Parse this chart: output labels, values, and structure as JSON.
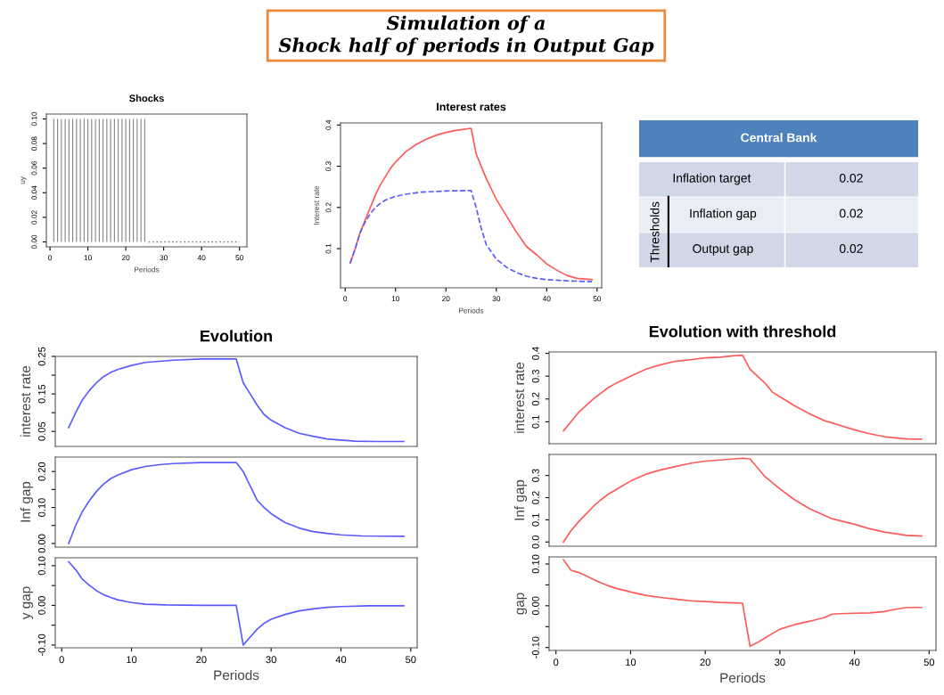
{
  "chart_data": [
    {
      "type": "other",
      "title": "Simulation of a\nShock half of periods in Output Gap"
    },
    {
      "type": "bar",
      "title": "Shocks",
      "xlabel": "Periods",
      "ylabel": "uy",
      "xlim": [
        -0.96,
        51.96
      ],
      "ylim": [
        -0.004,
        0.104
      ],
      "xticks": [
        0,
        10,
        20,
        30,
        40,
        50
      ],
      "yticks": [
        {
          "value": 0,
          "label": "0.00"
        },
        {
          "value": 0.02,
          "label": "0.02"
        },
        {
          "value": 0.04,
          "label": "0.04"
        },
        {
          "value": 0.06,
          "label": "0.06"
        },
        {
          "value": 0.08,
          "label": "0.08"
        },
        {
          "value": 0.1,
          "label": "0.10"
        }
      ],
      "series": [
        {
          "type": "bar",
          "color": "#7f7f7f",
          "x": [
            1,
            2,
            3,
            4,
            5,
            6,
            7,
            8,
            9,
            10,
            11,
            12,
            13,
            14,
            15,
            16,
            17,
            18,
            19,
            20,
            21,
            22,
            23,
            24,
            25
          ],
          "values": [
            0.1,
            0.1,
            0.1,
            0.1,
            0.1,
            0.1,
            0.1,
            0.1,
            0.1,
            0.1,
            0.1,
            0.1,
            0.1,
            0.1,
            0.1,
            0.1,
            0.1,
            0.1,
            0.1,
            0.1,
            0.1,
            0.1,
            0.1,
            0.1,
            0.1
          ]
        },
        {
          "type": "line",
          "line_style": "dotted",
          "color": "#7f7f7f",
          "x": [
            26,
            50
          ],
          "values": [
            0,
            0
          ]
        }
      ]
    },
    {
      "type": "line",
      "title": "Interest rates",
      "xlabel": "Periods",
      "ylabel": "Interest rate",
      "xlim": [
        -0.92,
        50.92
      ],
      "ylim": [
        0.005,
        0.405
      ],
      "xticks": [
        0,
        10,
        20,
        30,
        40,
        50
      ],
      "yticks": [
        0.1,
        0.2,
        0.3,
        0.4
      ],
      "series": [
        {
          "color": "#ff5a5a",
          "line_style": "solid",
          "x": [
            1,
            2,
            3,
            4,
            5,
            6,
            7,
            8,
            9,
            10,
            12,
            14,
            16,
            18,
            20,
            22,
            25,
            26,
            28,
            30,
            32,
            34,
            36,
            38,
            40,
            42,
            44,
            46,
            49
          ],
          "values": [
            0.065,
            0.1,
            0.14,
            0.17,
            0.2,
            0.23,
            0.255,
            0.275,
            0.295,
            0.31,
            0.335,
            0.352,
            0.365,
            0.375,
            0.382,
            0.387,
            0.392,
            0.33,
            0.27,
            0.22,
            0.18,
            0.14,
            0.105,
            0.085,
            0.063,
            0.048,
            0.035,
            0.028,
            0.025
          ]
        },
        {
          "color": "#5a5aff",
          "line_style": "dashed",
          "x": [
            1,
            2,
            3,
            4,
            5,
            6,
            7,
            8,
            10,
            12,
            15,
            20,
            25,
            26,
            27,
            28,
            30,
            32,
            34,
            36,
            38,
            40,
            44,
            49
          ],
          "values": [
            0.065,
            0.1,
            0.14,
            0.165,
            0.185,
            0.2,
            0.21,
            0.218,
            0.227,
            0.232,
            0.237,
            0.24,
            0.241,
            0.2,
            0.15,
            0.11,
            0.075,
            0.055,
            0.042,
            0.033,
            0.028,
            0.025,
            0.022,
            0.02
          ]
        }
      ]
    },
    {
      "type": "other",
      "title": "Central Bank",
      "categories": [
        "Inflation target",
        "Inflation gap",
        "Output gap"
      ],
      "values": [
        0.02,
        0.02,
        0.02
      ],
      "data_labels": true,
      "annotations": [
        "Thresholds"
      ]
    },
    {
      "type": "line",
      "title": "Evolution",
      "ylabel": "interest rate",
      "tick_labels": "y",
      "xlim": [
        -0.92,
        50.92
      ],
      "ylim": [
        0.01,
        0.25
      ],
      "yticks": [
        {
          "value": 0.05,
          "label": "0.05"
        },
        {
          "value": 0.1,
          "label": null
        },
        {
          "value": 0.15,
          "label": "0.15"
        },
        {
          "value": 0.2,
          "label": null
        },
        {
          "value": 0.25,
          "label": "0.25"
        }
      ],
      "series": [
        {
          "color": "#5a5aff",
          "line_style": "solid",
          "x": [
            1,
            2,
            3,
            4,
            5,
            6,
            7,
            8,
            10,
            12,
            14,
            16,
            20,
            25,
            26,
            27,
            28,
            29,
            30,
            32,
            34,
            36,
            38,
            40,
            42,
            45,
            49
          ],
          "values": [
            0.06,
            0.1,
            0.135,
            0.16,
            0.18,
            0.196,
            0.207,
            0.215,
            0.226,
            0.234,
            0.237,
            0.24,
            0.243,
            0.243,
            0.18,
            0.15,
            0.12,
            0.095,
            0.08,
            0.06,
            0.045,
            0.037,
            0.03,
            0.027,
            0.024,
            0.023,
            0.023
          ]
        }
      ]
    },
    {
      "type": "line",
      "ylabel": "Inf gap",
      "tick_labels": "y",
      "xlim": [
        -0.92,
        50.92
      ],
      "ylim": [
        -0.01,
        0.24
      ],
      "yticks": [
        {
          "value": 0,
          "label": "0.00"
        },
        {
          "value": 0.05,
          "label": null
        },
        {
          "value": 0.1,
          "label": "0.10"
        },
        {
          "value": 0.15,
          "label": null
        },
        {
          "value": 0.2,
          "label": "0.20"
        }
      ],
      "series": [
        {
          "color": "#5a5aff",
          "line_style": "solid",
          "x": [
            1,
            2,
            3,
            4,
            5,
            6,
            7,
            8,
            10,
            12,
            14,
            16,
            20,
            25,
            26,
            27,
            28,
            29,
            30,
            32,
            34,
            36,
            38,
            40,
            43,
            49
          ],
          "values": [
            0.0,
            0.05,
            0.09,
            0.12,
            0.145,
            0.165,
            0.18,
            0.19,
            0.205,
            0.214,
            0.219,
            0.222,
            0.225,
            0.225,
            0.2,
            0.16,
            0.12,
            0.1,
            0.083,
            0.058,
            0.043,
            0.033,
            0.028,
            0.024,
            0.021,
            0.02
          ]
        }
      ]
    },
    {
      "type": "line",
      "xlabel": "Periods",
      "ylabel": "y gap",
      "xlim": [
        -0.92,
        50.92
      ],
      "ylim": [
        -0.107,
        0.12
      ],
      "xticks": [
        0,
        10,
        20,
        30,
        40,
        50
      ],
      "yticks": [
        {
          "value": -0.1,
          "label": "-0.10"
        },
        {
          "value": -0.05,
          "label": null
        },
        {
          "value": 0,
          "label": "0.00"
        },
        {
          "value": 0.05,
          "label": null
        },
        {
          "value": 0.1,
          "label": "0.10"
        }
      ],
      "series": [
        {
          "color": "#5a5aff",
          "line_style": "solid",
          "x": [
            1,
            2,
            3,
            4,
            5,
            6,
            7,
            8,
            10,
            12,
            15,
            20,
            25,
            26,
            27,
            28,
            29,
            30,
            32,
            34,
            36,
            38,
            40,
            44,
            49
          ],
          "values": [
            0.11,
            0.09,
            0.065,
            0.05,
            0.037,
            0.027,
            0.02,
            0.014,
            0.007,
            0.003,
            0.001,
            0.0,
            0.0,
            -0.1,
            -0.08,
            -0.06,
            -0.045,
            -0.035,
            -0.023,
            -0.014,
            -0.009,
            -0.005,
            -0.003,
            -0.001,
            -0.001
          ]
        }
      ]
    },
    {
      "type": "line",
      "title": "Evolution with threshold",
      "ylabel": "interest rate",
      "tick_labels": "y",
      "xlim": [
        -0.92,
        50.92
      ],
      "ylim": [
        0.004,
        0.406
      ],
      "yticks": [
        0.1,
        0.2,
        0.3,
        0.4
      ],
      "series": [
        {
          "color": "#ff5a5a",
          "line_style": "solid",
          "x": [
            1,
            2,
            3,
            4,
            5,
            6,
            7,
            8,
            10,
            12,
            14,
            16,
            18,
            20,
            22,
            24,
            25,
            26,
            28,
            29,
            30,
            32,
            34,
            36,
            38,
            40,
            42,
            44,
            46,
            47,
            49
          ],
          "values": [
            0.06,
            0.1,
            0.14,
            0.17,
            0.2,
            0.225,
            0.25,
            0.268,
            0.3,
            0.33,
            0.35,
            0.365,
            0.372,
            0.38,
            0.383,
            0.39,
            0.392,
            0.33,
            0.27,
            0.23,
            0.21,
            0.17,
            0.135,
            0.105,
            0.085,
            0.065,
            0.048,
            0.035,
            0.028,
            0.025,
            0.024
          ]
        }
      ]
    },
    {
      "type": "line",
      "ylabel": "Inf gap",
      "tick_labels": "y",
      "xlim": [
        -0.92,
        50.92
      ],
      "ylim": [
        -0.019,
        0.395
      ],
      "yticks": [
        {
          "value": 0,
          "label": "0.0"
        },
        0.1,
        0.2,
        0.3
      ],
      "series": [
        {
          "color": "#ff5a5a",
          "line_style": "solid",
          "x": [
            1,
            2,
            3,
            4,
            5,
            6,
            7,
            8,
            10,
            12,
            14,
            16,
            18,
            20,
            22,
            25,
            26,
            27,
            28,
            30,
            32,
            34,
            36,
            37,
            40,
            42,
            44,
            46,
            47,
            49
          ],
          "values": [
            0.0,
            0.05,
            0.09,
            0.125,
            0.16,
            0.19,
            0.215,
            0.235,
            0.275,
            0.305,
            0.325,
            0.34,
            0.355,
            0.365,
            0.37,
            0.378,
            0.375,
            0.335,
            0.295,
            0.24,
            0.19,
            0.15,
            0.12,
            0.105,
            0.08,
            0.06,
            0.045,
            0.035,
            0.03,
            0.027
          ]
        }
      ]
    },
    {
      "type": "line",
      "xlabel": "Periods",
      "ylabel": "gap",
      "xlim": [
        -0.92,
        50.92
      ],
      "ylim": [
        -0.107,
        0.117
      ],
      "xticks": [
        0,
        10,
        20,
        30,
        40,
        50
      ],
      "yticks": [
        {
          "value": -0.1,
          "label": "-0.10"
        },
        {
          "value": -0.05,
          "label": null
        },
        {
          "value": 0,
          "label": "0.00"
        },
        {
          "value": 0.05,
          "label": null
        },
        {
          "value": 0.1,
          "label": "0.10"
        }
      ],
      "series": [
        {
          "color": "#ff5a5a",
          "line_style": "solid",
          "x": [
            1,
            2,
            3,
            4,
            5,
            6,
            7,
            8,
            10,
            12,
            14,
            16,
            18,
            20,
            22,
            24,
            25,
            26,
            27,
            28,
            30,
            32,
            34,
            36,
            37,
            38,
            40,
            42,
            44,
            45,
            47,
            49
          ],
          "values": [
            0.11,
            0.085,
            0.08,
            0.072,
            0.063,
            0.055,
            0.048,
            0.042,
            0.033,
            0.025,
            0.02,
            0.016,
            0.012,
            0.01,
            0.008,
            0.007,
            0.006,
            -0.097,
            -0.088,
            -0.077,
            -0.056,
            -0.045,
            -0.037,
            -0.028,
            -0.02,
            -0.019,
            -0.018,
            -0.017,
            -0.014,
            -0.01,
            -0.004,
            -0.004
          ]
        }
      ]
    }
  ]
}
